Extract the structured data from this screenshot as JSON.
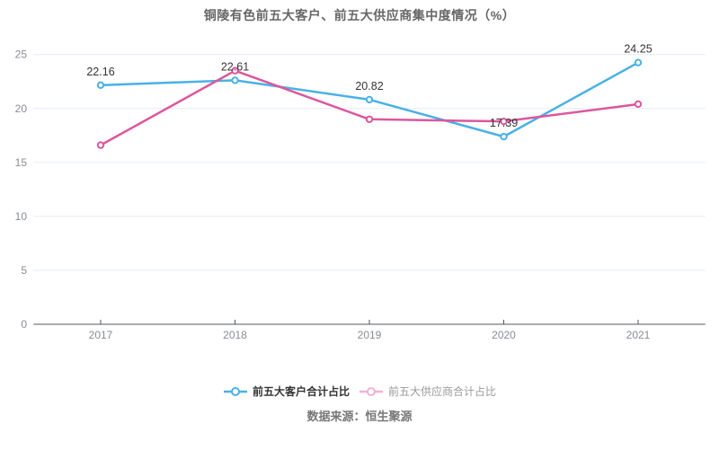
{
  "chart": {
    "title": "铜陵有色前五大客户、前五大供应商集中度情况（%）",
    "source": "数据来源：恒生聚源"
  },
  "chart_data": {
    "type": "line",
    "title": "铜陵有色前五大客户、前五大供应商集中度情况（%）",
    "categories": [
      "2017",
      "2018",
      "2019",
      "2020",
      "2021"
    ],
    "series": [
      {
        "name": "前五大客户合计占比",
        "values": [
          22.16,
          22.61,
          20.82,
          17.39,
          24.25
        ],
        "data_labels": [
          "22.16",
          "22.61",
          "20.82",
          "17.39",
          "24.25"
        ],
        "color": "#49b1e6",
        "marker": "open-circle",
        "legend_muted": false
      },
      {
        "name": "前五大供应商合计占比",
        "values": [
          16.6,
          23.5,
          19.0,
          18.8,
          20.4
        ],
        "data_labels": [],
        "color": "#dc579d",
        "marker": "open-circle",
        "legend_muted": true
      }
    ],
    "xlabel": "",
    "ylabel": "",
    "ylim": [
      0,
      25
    ],
    "yticks": [
      0,
      5,
      10,
      15,
      20,
      25
    ],
    "grid": "horizontal",
    "legend_position": "bottom",
    "colors": {
      "grid_line": "#e5eaf3",
      "axis_line": "#54595f",
      "tick_label": "#888d94",
      "value_label": "#333333"
    }
  }
}
